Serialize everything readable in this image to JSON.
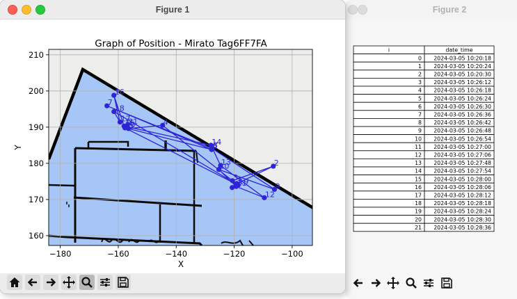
{
  "window_main": {
    "title": "Figure 1"
  },
  "window_table": {
    "title": "Figure 2"
  },
  "chart_data": {
    "type": "scatter",
    "title": "Graph of Position - Mirato Tag6FF7FA",
    "xlabel": "X",
    "ylabel": "Y",
    "xlim": [
      -184,
      -93
    ],
    "ylim": [
      157.3,
      211.5
    ],
    "xticks": [
      -180,
      -160,
      -140,
      -120,
      -100
    ],
    "yticks": [
      160,
      170,
      180,
      190,
      200,
      210
    ],
    "xtick_labels": [
      "−180",
      "−160",
      "−140",
      "−120",
      "−100"
    ],
    "ytick_labels": [
      "160",
      "170",
      "180",
      "190",
      "200",
      "210"
    ],
    "grid": true,
    "background_image": "floor-plan",
    "series": [
      {
        "color": "#2d24d6",
        "connected": true,
        "points": [
          {
            "label": "0",
            "x": -120.7,
            "y": 173.3
          },
          {
            "label": "1",
            "x": -119.1,
            "y": 174.4
          },
          {
            "label": "2",
            "x": -106.5,
            "y": 179.2
          },
          {
            "label": "3",
            "x": -120.6,
            "y": 175.2
          },
          {
            "label": "4",
            "x": -144.7,
            "y": 190.5
          },
          {
            "label": "5",
            "x": -156.5,
            "y": 189.6
          },
          {
            "label": "6",
            "x": -127.8,
            "y": 183.8
          },
          {
            "label": "7",
            "x": -163.9,
            "y": 195.9
          },
          {
            "label": "8",
            "x": -127.6,
            "y": 184.1
          },
          {
            "label": "9",
            "x": -106.1,
            "y": 172.8
          },
          {
            "label": "10",
            "x": -125.3,
            "y": 178.3
          },
          {
            "label": "11",
            "x": -119.3,
            "y": 173.6
          },
          {
            "label": "12",
            "x": -109.6,
            "y": 170.5
          },
          {
            "label": "13",
            "x": -124.7,
            "y": 179.4
          },
          {
            "label": "14",
            "x": -128.0,
            "y": 185.0
          },
          {
            "label": "15",
            "x": -158.0,
            "y": 190.3
          },
          {
            "label": "16",
            "x": -161.5,
            "y": 198.8
          },
          {
            "label": "17",
            "x": -159.4,
            "y": 191.4
          },
          {
            "label": "18",
            "x": -161.5,
            "y": 194.3
          },
          {
            "label": "19",
            "x": -118.6,
            "y": 174.0
          },
          {
            "label": "20",
            "x": -157.7,
            "y": 189.8
          },
          {
            "label": "21",
            "x": -156.8,
            "y": 190.6
          }
        ]
      }
    ]
  },
  "table": {
    "headers": [
      "i",
      "date_time"
    ],
    "rows": [
      [
        "0",
        "2024-03-05 10:20:18"
      ],
      [
        "1",
        "2024-03-05 10:20:24"
      ],
      [
        "2",
        "2024-03-05 10:20:30"
      ],
      [
        "3",
        "2024-03-05 10:26:12"
      ],
      [
        "4",
        "2024-03-05 10:26:18"
      ],
      [
        "5",
        "2024-03-05 10:26:24"
      ],
      [
        "6",
        "2024-03-05 10:26:30"
      ],
      [
        "7",
        "2024-03-05 10:26:36"
      ],
      [
        "8",
        "2024-03-05 10:26:42"
      ],
      [
        "9",
        "2024-03-05 10:26:48"
      ],
      [
        "10",
        "2024-03-05 10:26:54"
      ],
      [
        "11",
        "2024-03-05 10:27:00"
      ],
      [
        "12",
        "2024-03-05 10:27:06"
      ],
      [
        "13",
        "2024-03-05 10:27:48"
      ],
      [
        "14",
        "2024-03-05 10:27:54"
      ],
      [
        "15",
        "2024-03-05 10:28:00"
      ],
      [
        "16",
        "2024-03-05 10:28:06"
      ],
      [
        "17",
        "2024-03-05 10:28:12"
      ],
      [
        "18",
        "2024-03-05 10:28:18"
      ],
      [
        "19",
        "2024-03-05 10:28:24"
      ],
      [
        "20",
        "2024-03-05 10:28:30"
      ],
      [
        "21",
        "2024-03-05 10:28:36"
      ]
    ]
  },
  "toolbar_main": {
    "buttons": [
      "home-icon",
      "back-arrow-icon",
      "forward-arrow-icon",
      "pan-icon",
      "zoom-icon",
      "configure-subplots-icon",
      "save-icon"
    ]
  },
  "toolbar_table": {
    "buttons": [
      "back-arrow-icon",
      "forward-arrow-icon",
      "pan-icon",
      "zoom-icon",
      "configure-subplots-icon",
      "save-icon"
    ]
  }
}
